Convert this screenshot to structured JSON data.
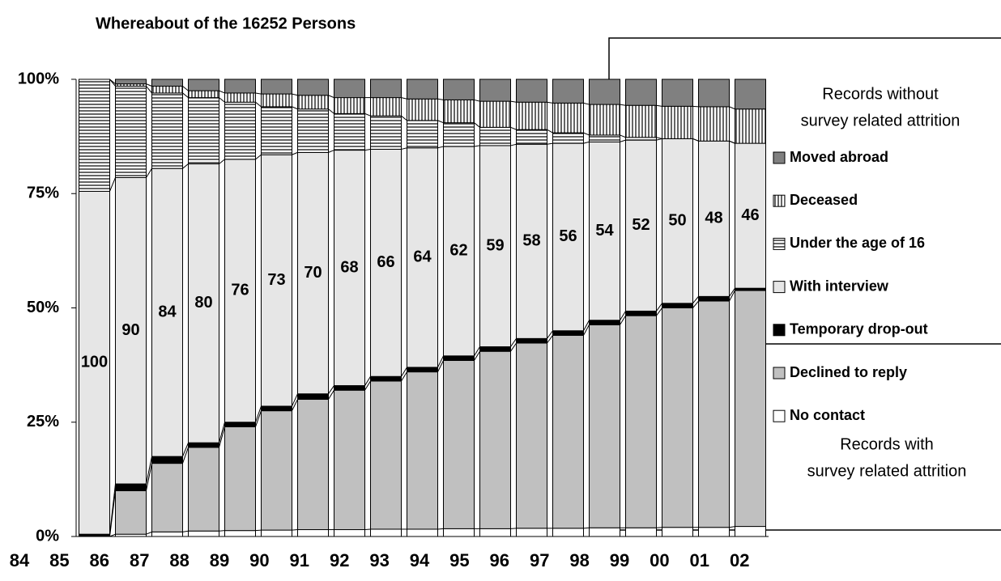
{
  "chart_data": {
    "type": "stacked_bar",
    "title": "Whereabout of the 16252 Persons",
    "categories": [
      "84",
      "85",
      "86",
      "87",
      "88",
      "89",
      "90",
      "91",
      "92",
      "93",
      "94",
      "95",
      "96",
      "97",
      "98",
      "99",
      "00",
      "01",
      "02"
    ],
    "ylim": [
      0,
      100
    ],
    "yticks": [
      {
        "value": 0,
        "label": "0%"
      },
      {
        "value": 25,
        "label": "25%"
      },
      {
        "value": 50,
        "label": "50%"
      },
      {
        "value": 75,
        "label": "75%"
      },
      {
        "value": 100,
        "label": "100%"
      }
    ],
    "legend_top_note": [
      "Records without",
      "survey related attrition"
    ],
    "legend_bottom_note": [
      "Records with",
      "survey related attrition"
    ],
    "labeled_series": 3,
    "data_labels": [
      100,
      90,
      84,
      80,
      76,
      73,
      70,
      68,
      66,
      64,
      62,
      59,
      58,
      56,
      54,
      52,
      50,
      48,
      46
    ],
    "series": [
      {
        "name": "No contact",
        "color": "#ffffff",
        "values": [
          0,
          0.5,
          1,
          1.2,
          1.3,
          1.4,
          1.5,
          1.5,
          1.6,
          1.6,
          1.7,
          1.7,
          1.8,
          1.8,
          1.9,
          1.9,
          2,
          2,
          2.2
        ]
      },
      {
        "name": "Declined to reply",
        "color": "#c0c0c0",
        "values": [
          0,
          9.5,
          15,
          18.3,
          22.7,
          26.1,
          28.5,
          30.5,
          32.4,
          34.4,
          36.8,
          38.8,
          40.5,
          42.2,
          44.4,
          46.4,
          48,
          49.5,
          51.6
        ]
      },
      {
        "name": "Temporary drop-out",
        "color": "#000000",
        "values": [
          0.5,
          1.5,
          1.5,
          1,
          1,
          1,
          1.2,
          1,
          1,
          1,
          1,
          1,
          1,
          1,
          1,
          1,
          1,
          1,
          0.5
        ]
      },
      {
        "name": "With interview",
        "color": "#e6e6e6",
        "values": [
          75,
          67,
          63,
          61,
          57.5,
          55,
          52.8,
          51.5,
          49.7,
          48,
          45.8,
          44,
          42.5,
          41,
          39,
          37.4,
          36,
          34,
          31.7
        ]
      },
      {
        "name": "Under the age of 16",
        "color": "#000000",
        "pattern": "horizontal",
        "values": [
          24.5,
          20,
          16.5,
          14.5,
          12.5,
          10.5,
          9.5,
          8,
          7.3,
          6,
          5.2,
          4,
          3.2,
          2.3,
          1.5,
          0.6,
          0,
          0,
          0
        ]
      },
      {
        "name": "Deceased",
        "color": "#000000",
        "pattern": "vertical",
        "values": [
          0,
          0.5,
          1.5,
          1.5,
          2,
          2.8,
          3,
          3.5,
          4,
          4.7,
          5,
          5.7,
          6,
          6.5,
          6.7,
          7,
          7.1,
          7.5,
          7.5
        ]
      },
      {
        "name": "Moved abroad",
        "color": "#808080",
        "values": [
          0,
          1,
          1.5,
          2.5,
          3,
          3.2,
          3.5,
          4,
          4,
          4.3,
          4.5,
          4.8,
          5,
          5.2,
          5.5,
          5.7,
          5.9,
          6,
          6.5
        ]
      }
    ]
  }
}
